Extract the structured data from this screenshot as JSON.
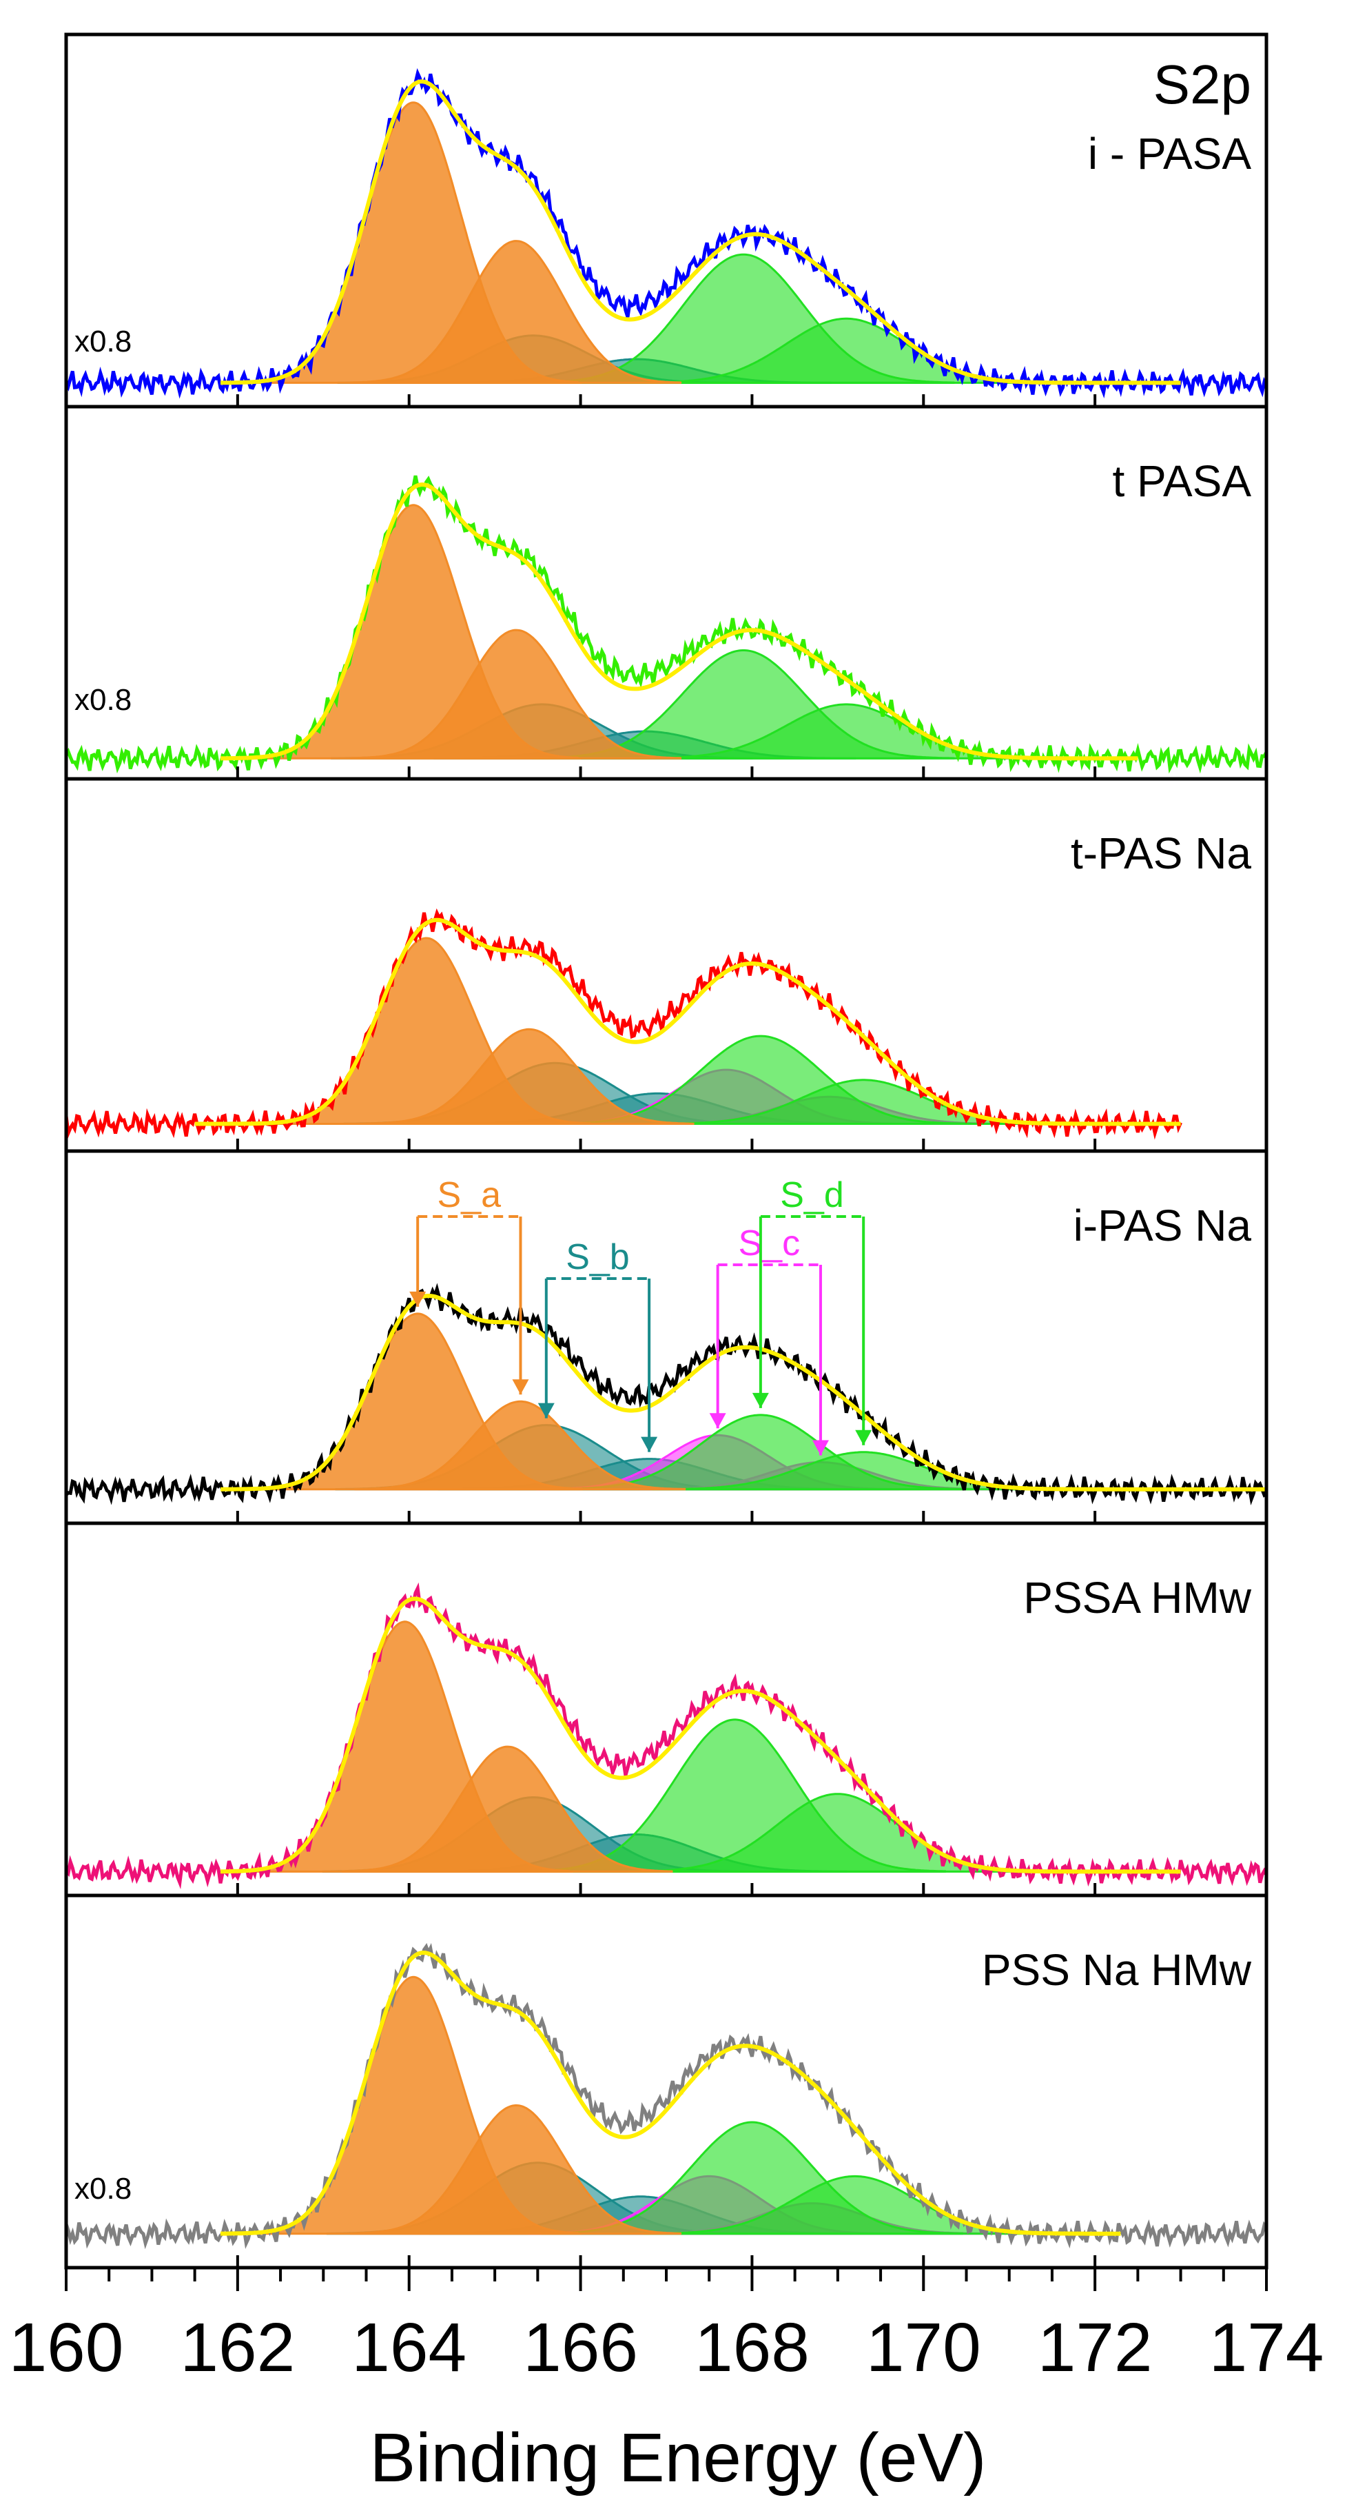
{
  "chart_data": {
    "type": "line",
    "title": "",
    "region_label": "S2p",
    "xlabel": "Binding Energy (eV)",
    "ylabel": "",
    "xlim": [
      160,
      174
    ],
    "xticks": [
      160,
      162,
      164,
      166,
      168,
      170,
      172,
      174
    ],
    "xtick_labels": [
      "160",
      "162",
      "164",
      "166",
      "168",
      "170",
      "172",
      "174"
    ],
    "grid": false,
    "colors": {
      "S_a": "#f28c28",
      "S_b": "#1a8c8c",
      "S_c": "#ff33ff",
      "S_d": "#22e022",
      "envelope": "#ffee00"
    },
    "annotations": [
      {
        "label": "S_a",
        "color": "#f28c28",
        "x1": 164.1,
        "x2": 165.3
      },
      {
        "label": "S_b",
        "color": "#1a8c8c",
        "x1": 165.6,
        "x2": 166.8
      },
      {
        "label": "S_c",
        "color": "#ff33ff",
        "x1": 167.6,
        "x2": 168.8
      },
      {
        "label": "S_d",
        "color": "#22e022",
        "x1": 168.1,
        "x2": 169.3
      }
    ],
    "panels": [
      {
        "name": "i - PASA",
        "scale_label": "x0.8",
        "data_color": "#0000ff",
        "baseline": 0.04,
        "data_range": [
          160,
          174
        ],
        "fit_range": [
          161.8,
          173
        ],
        "components": [
          {
            "group": "S_a",
            "center": 164.05,
            "amp": 0.83,
            "sigma": 0.55
          },
          {
            "group": "S_a",
            "center": 165.25,
            "amp": 0.42,
            "sigma": 0.55
          },
          {
            "group": "S_b",
            "center": 165.45,
            "amp": 0.14,
            "sigma": 0.65
          },
          {
            "group": "S_b",
            "center": 166.65,
            "amp": 0.07,
            "sigma": 0.65
          },
          {
            "group": "S_d",
            "center": 167.9,
            "amp": 0.38,
            "sigma": 0.7
          },
          {
            "group": "S_d",
            "center": 169.1,
            "amp": 0.19,
            "sigma": 0.7
          }
        ]
      },
      {
        "name": "t PASA",
        "scale_label": "x0.8",
        "data_color": "#33ee00",
        "baseline": 0.03,
        "data_range": [
          160,
          174
        ],
        "fit_range": [
          161.8,
          172.5
        ],
        "components": [
          {
            "group": "S_a",
            "center": 164.05,
            "amp": 0.75,
            "sigma": 0.55
          },
          {
            "group": "S_a",
            "center": 165.25,
            "amp": 0.38,
            "sigma": 0.55
          },
          {
            "group": "S_b",
            "center": 165.55,
            "amp": 0.16,
            "sigma": 0.7
          },
          {
            "group": "S_b",
            "center": 166.75,
            "amp": 0.08,
            "sigma": 0.7
          },
          {
            "group": "S_d",
            "center": 167.9,
            "amp": 0.32,
            "sigma": 0.7
          },
          {
            "group": "S_d",
            "center": 169.1,
            "amp": 0.16,
            "sigma": 0.7
          }
        ]
      },
      {
        "name": "t-PAS Na",
        "scale_label": "",
        "data_color": "#ff0000",
        "baseline": 0.05,
        "data_range": [
          160,
          173
        ],
        "fit_range": [
          161.5,
          173
        ],
        "components": [
          {
            "group": "S_a",
            "center": 164.2,
            "amp": 0.55,
            "sigma": 0.55
          },
          {
            "group": "S_a",
            "center": 165.4,
            "amp": 0.28,
            "sigma": 0.55
          },
          {
            "group": "S_b",
            "center": 165.7,
            "amp": 0.18,
            "sigma": 0.7
          },
          {
            "group": "S_b",
            "center": 166.9,
            "amp": 0.09,
            "sigma": 0.7
          },
          {
            "group": "S_c",
            "center": 167.7,
            "amp": 0.16,
            "sigma": 0.6
          },
          {
            "group": "S_c",
            "center": 168.9,
            "amp": 0.08,
            "sigma": 0.6
          },
          {
            "group": "S_d",
            "center": 168.1,
            "amp": 0.26,
            "sigma": 0.7
          },
          {
            "group": "S_d",
            "center": 169.3,
            "amp": 0.13,
            "sigma": 0.7
          }
        ]
      },
      {
        "name": "i-PAS Na",
        "scale_label": "",
        "data_color": "#000000",
        "baseline": 0.07,
        "data_range": [
          160,
          174
        ],
        "fit_range": [
          161.8,
          174
        ],
        "components": [
          {
            "group": "S_a",
            "center": 164.1,
            "amp": 0.52,
            "sigma": 0.55
          },
          {
            "group": "S_a",
            "center": 165.3,
            "amp": 0.26,
            "sigma": 0.55
          },
          {
            "group": "S_b",
            "center": 165.6,
            "amp": 0.19,
            "sigma": 0.7
          },
          {
            "group": "S_b",
            "center": 166.8,
            "amp": 0.09,
            "sigma": 0.7
          },
          {
            "group": "S_c",
            "center": 167.6,
            "amp": 0.16,
            "sigma": 0.6
          },
          {
            "group": "S_c",
            "center": 168.8,
            "amp": 0.08,
            "sigma": 0.6
          },
          {
            "group": "S_d",
            "center": 168.1,
            "amp": 0.22,
            "sigma": 0.7
          },
          {
            "group": "S_d",
            "center": 169.3,
            "amp": 0.11,
            "sigma": 0.7
          }
        ]
      },
      {
        "name": "PSSA HMw",
        "scale_label": "",
        "data_color": "#ee1177",
        "baseline": 0.04,
        "data_range": [
          160,
          174
        ],
        "fit_range": [
          161.8,
          173
        ],
        "components": [
          {
            "group": "S_a",
            "center": 163.95,
            "amp": 0.74,
            "sigma": 0.55
          },
          {
            "group": "S_a",
            "center": 165.15,
            "amp": 0.37,
            "sigma": 0.55
          },
          {
            "group": "S_b",
            "center": 165.45,
            "amp": 0.22,
            "sigma": 0.7
          },
          {
            "group": "S_b",
            "center": 166.65,
            "amp": 0.11,
            "sigma": 0.7
          },
          {
            "group": "S_d",
            "center": 167.8,
            "amp": 0.45,
            "sigma": 0.7
          },
          {
            "group": "S_d",
            "center": 169.0,
            "amp": 0.23,
            "sigma": 0.7
          }
        ]
      },
      {
        "name": "PSS Na HMw",
        "scale_label": "x0.8",
        "data_color": "#808080",
        "baseline": 0.07,
        "data_range": [
          160,
          174
        ],
        "fit_range": [
          161.8,
          172.3
        ],
        "components": [
          {
            "group": "S_a",
            "center": 164.05,
            "amp": 0.76,
            "sigma": 0.55
          },
          {
            "group": "S_a",
            "center": 165.25,
            "amp": 0.38,
            "sigma": 0.55
          },
          {
            "group": "S_b",
            "center": 165.5,
            "amp": 0.21,
            "sigma": 0.7
          },
          {
            "group": "S_b",
            "center": 166.7,
            "amp": 0.11,
            "sigma": 0.7
          },
          {
            "group": "S_c",
            "center": 167.5,
            "amp": 0.17,
            "sigma": 0.6
          },
          {
            "group": "S_c",
            "center": 168.7,
            "amp": 0.09,
            "sigma": 0.6
          },
          {
            "group": "S_d",
            "center": 168.0,
            "amp": 0.33,
            "sigma": 0.7
          },
          {
            "group": "S_d",
            "center": 169.2,
            "amp": 0.17,
            "sigma": 0.7
          }
        ]
      }
    ]
  }
}
